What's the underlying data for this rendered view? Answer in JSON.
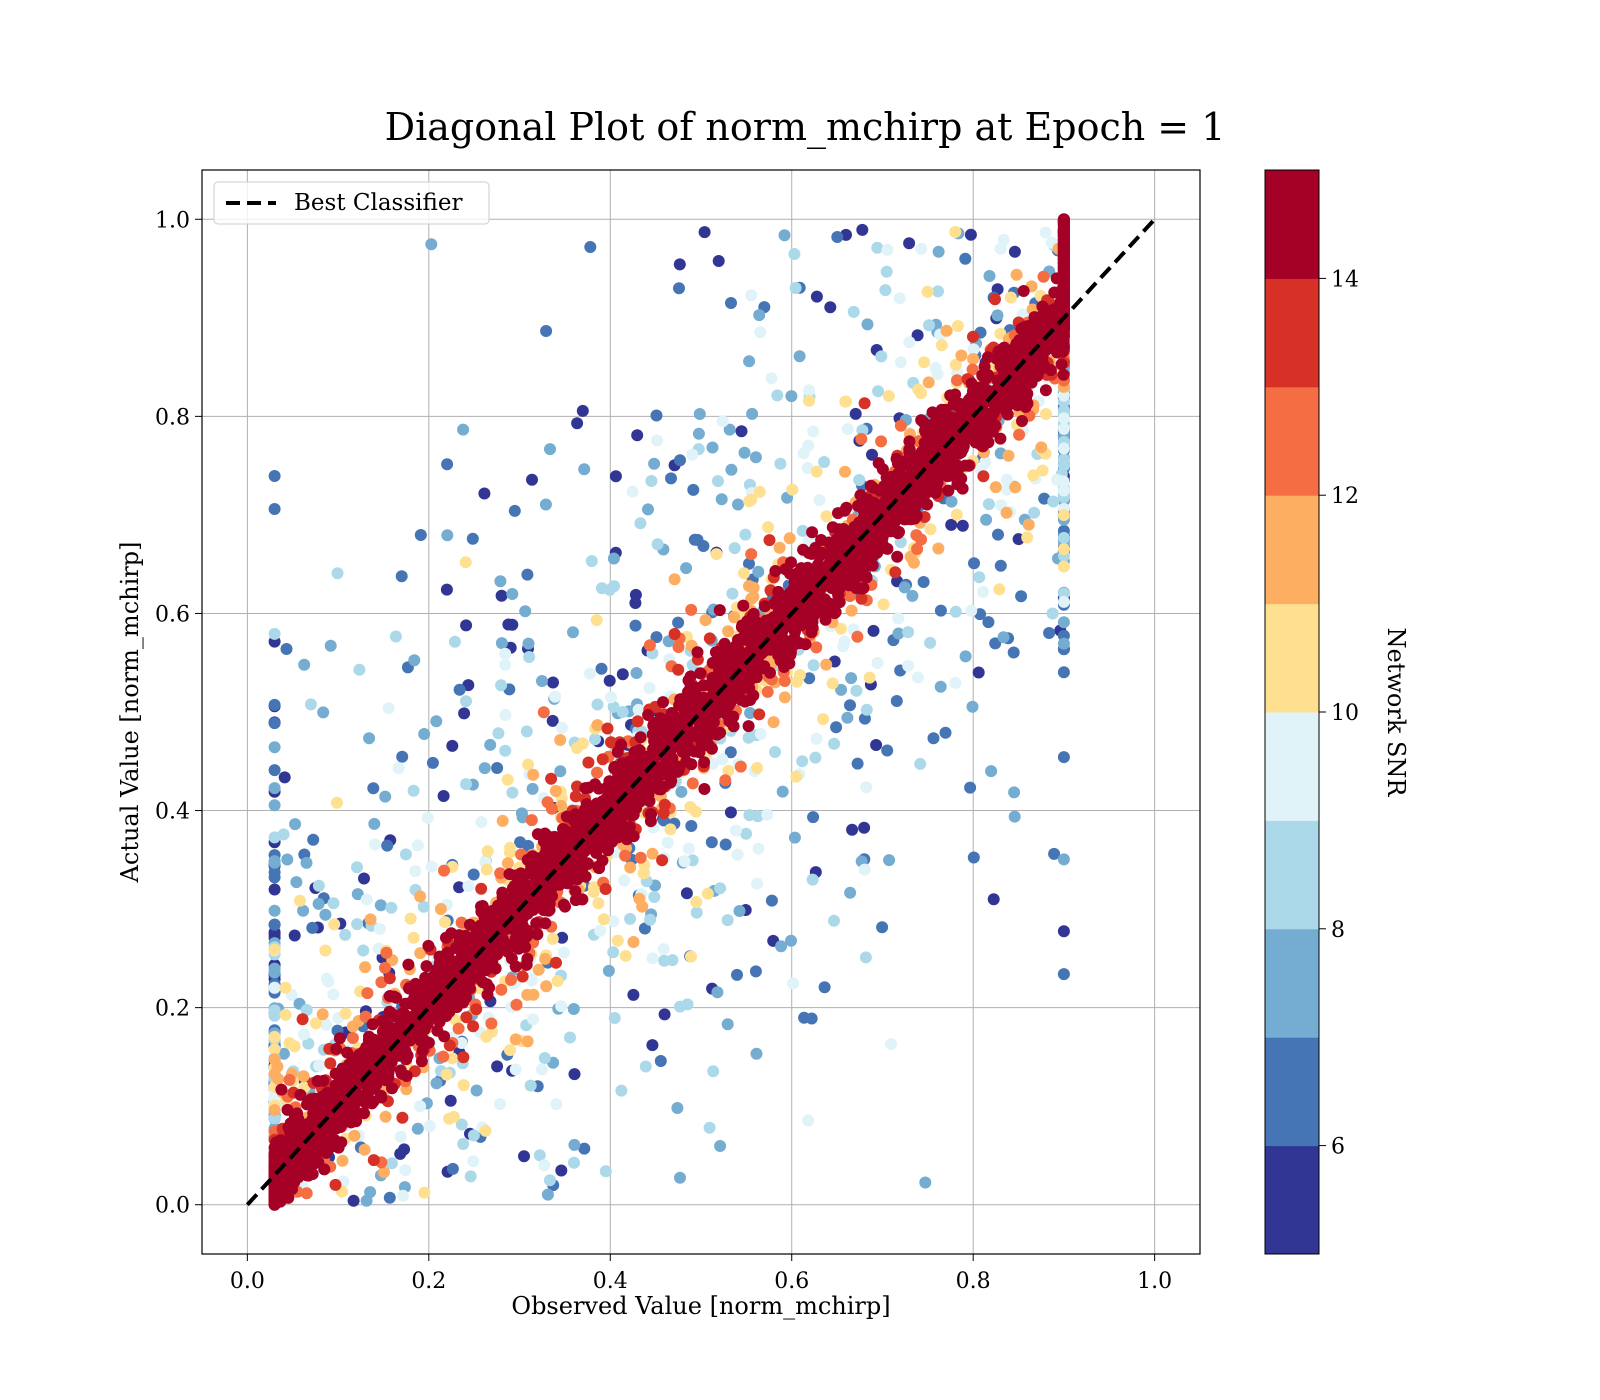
{
  "chart_data": {
    "type": "scatter",
    "title": "Diagonal Plot of norm_mchirp at Epoch = 1",
    "xlabel": "Observed Value [norm_mchirp]",
    "ylabel": "Actual Value [norm_mchirp]",
    "xlim": [
      -0.05,
      1.05
    ],
    "ylim": [
      -0.05,
      1.05
    ],
    "xticks": [
      "0.0",
      "0.2",
      "0.4",
      "0.6",
      "0.8",
      "1.0"
    ],
    "yticks": [
      "0.0",
      "0.2",
      "0.4",
      "0.6",
      "0.8",
      "1.0"
    ],
    "grid": true,
    "legend": {
      "position": "top-left",
      "entries": [
        "Best Classifier"
      ]
    },
    "reference_line": {
      "name": "Best Classifier",
      "x": [
        0.0,
        1.0
      ],
      "y": [
        0.0,
        1.0
      ],
      "style": "dashed",
      "color": "#000000"
    },
    "colorbar": {
      "label": "Network SNR",
      "range": [
        5,
        15
      ],
      "ticks": [
        "6",
        "8",
        "10",
        "12",
        "14"
      ],
      "colors": [
        "#313695",
        "#4575b4",
        "#74add1",
        "#abd9e9",
        "#e0f3f8",
        "#fee090",
        "#fdae61",
        "#f46d43",
        "#d73027",
        "#a50026"
      ]
    },
    "scatter": {
      "color_by": "Network SNR",
      "x_range": [
        0.03,
        0.9
      ],
      "y_range": [
        0.0,
        1.0
      ],
      "trend": "high SNR points cluster tightly along the diagonal; low SNR points scatter widely around it"
    }
  }
}
